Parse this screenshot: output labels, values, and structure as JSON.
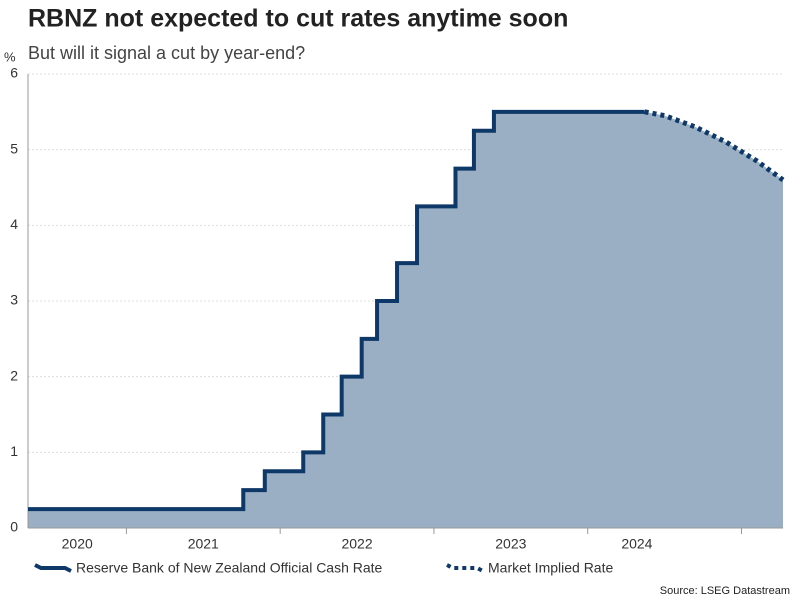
{
  "chart_data": {
    "type": "step-area",
    "title": "RBNZ not expected to cut rates anytime soon",
    "subtitle": "But will it signal a cut by year-end?",
    "y_unit": "%",
    "source": "Source: LSEG Datastream",
    "xlim": [
      2020.36,
      2025.27
    ],
    "xticks": [
      {
        "value": 2020.68,
        "label": "2020"
      },
      {
        "value": 2021.5,
        "label": "2021"
      },
      {
        "value": 2022.5,
        "label": "2022"
      },
      {
        "value": 2023.5,
        "label": "2023"
      },
      {
        "value": 2024.32,
        "label": "2024"
      }
    ],
    "x_minor_ticks": [
      2021,
      2022,
      2023,
      2024,
      2025
    ],
    "ylim": [
      0,
      6
    ],
    "yticks": [
      0,
      1,
      2,
      3,
      4,
      5,
      6
    ],
    "grid": true,
    "area_color": "#9aafc4",
    "series": [
      {
        "name": "Reserve Bank of New Zealand Official Cash Rate",
        "color": "#0d3868",
        "style": "step",
        "x": [
          2020.36,
          2021.76,
          2021.9,
          2022.15,
          2022.28,
          2022.4,
          2022.53,
          2022.63,
          2022.76,
          2022.89,
          2023.14,
          2023.26,
          2023.39,
          2024.37
        ],
        "values": [
          0.25,
          0.5,
          0.75,
          1.0,
          1.5,
          2.0,
          2.5,
          3.0,
          3.5,
          4.25,
          4.75,
          5.25,
          5.5,
          5.5
        ]
      },
      {
        "name": "Market Implied Rate",
        "color": "#0d3868",
        "style": "dotted",
        "x": [
          2024.37,
          2024.5,
          2024.7,
          2024.9,
          2025.1,
          2025.27
        ],
        "values": [
          5.5,
          5.45,
          5.3,
          5.1,
          4.85,
          4.6
        ]
      }
    ]
  }
}
